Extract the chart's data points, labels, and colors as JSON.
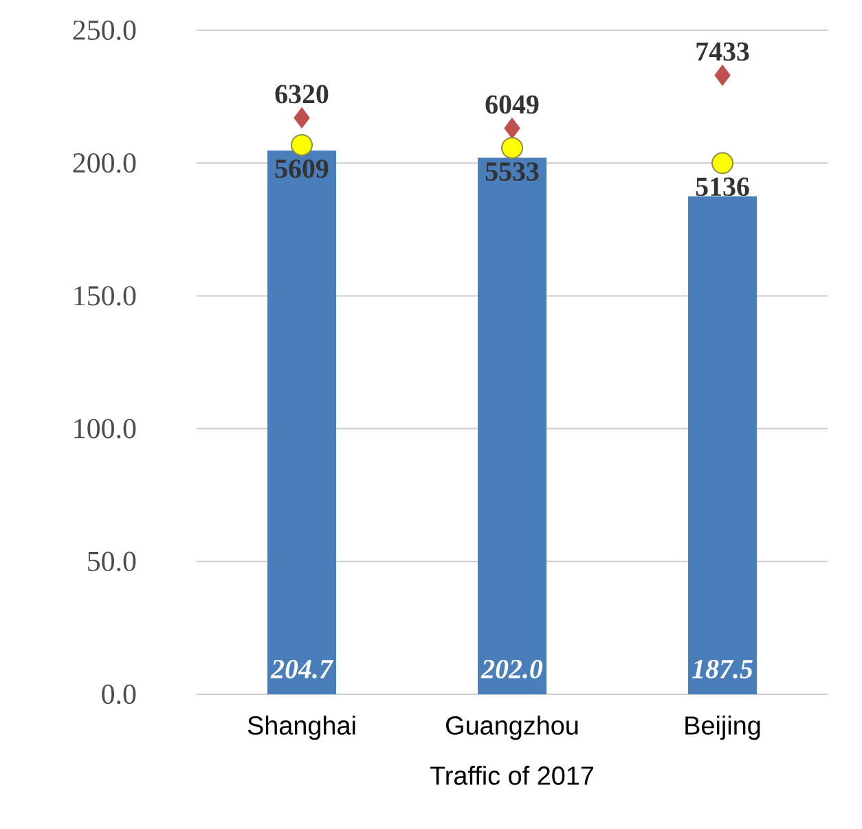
{
  "chart_data": {
    "type": "bar",
    "xlabel": "Traffic  of 2017",
    "categories": [
      "Shanghai",
      "Guangzhou",
      "Beijing"
    ],
    "series": [
      {
        "color": "#4a7ebb",
        "values": [
          204.7,
          202.0,
          187.5
        ],
        "value_labels": [
          "204.7",
          "202.0",
          "187.5"
        ]
      },
      {
        "type": "scatter",
        "axis": "y2",
        "marker": "diamond",
        "color": "#c0504d",
        "values": [
          6320,
          6049,
          7433
        ],
        "value_labels": [
          "6320",
          "6049",
          "7433"
        ]
      },
      {
        "type": "scatter",
        "axis": "y2",
        "marker": "circle",
        "color": "#ffff00",
        "values": [
          5609,
          5533,
          5136
        ],
        "value_labels": [
          "5609",
          "5533",
          "5136"
        ]
      }
    ],
    "ylim": [
      0,
      250
    ],
    "yticks": [
      {
        "value": 0,
        "label": "0.0"
      },
      {
        "value": 50,
        "label": "50.0"
      },
      {
        "value": 100,
        "label": "100.0"
      },
      {
        "value": 150,
        "label": "150.0"
      },
      {
        "value": 200,
        "label": "200.0"
      },
      {
        "value": 250,
        "label": "250.0"
      }
    ],
    "y2lim": [
      -8750,
      8610
    ],
    "grid": "y"
  }
}
